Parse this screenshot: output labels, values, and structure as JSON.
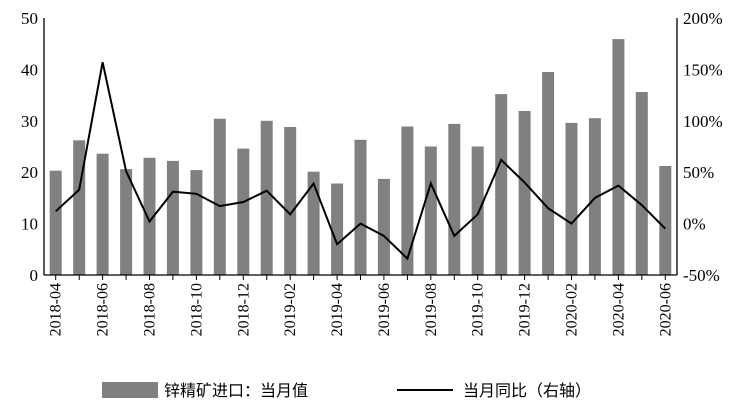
{
  "chart_data": {
    "type": "bar",
    "categories": [
      "2018-04",
      "2018-05",
      "2018-06",
      "2018-07",
      "2018-08",
      "2018-09",
      "2018-10",
      "2018-11",
      "2018-12",
      "2019-01",
      "2019-02",
      "2019-03",
      "2019-04",
      "2019-05",
      "2019-06",
      "2019-07",
      "2019-08",
      "2019-09",
      "2019-10",
      "2019-11",
      "2019-12",
      "2020-01",
      "2020-02",
      "2020-03",
      "2020-04",
      "2020-05",
      "2020-06"
    ],
    "x_tick_labels": [
      "2018-04",
      "2018-06",
      "2018-08",
      "2018-10",
      "2018-12",
      "2019-02",
      "2019-04",
      "2019-06",
      "2019-08",
      "2019-10",
      "2019-12",
      "2020-02",
      "2020-04",
      "2020-06"
    ],
    "series": [
      {
        "name": "锌精矿进口：当月值",
        "kind": "bar",
        "axis": "left",
        "color": "#808080",
        "values": [
          20.3,
          26.2,
          23.6,
          20.6,
          22.8,
          22.2,
          20.4,
          30.4,
          24.6,
          30.0,
          28.8,
          20.1,
          17.8,
          26.3,
          18.7,
          28.9,
          25.0,
          29.4,
          25.0,
          35.2,
          31.9,
          39.5,
          29.6,
          30.5,
          45.9,
          35.6,
          21.2
        ]
      },
      {
        "name": "当月同比（右轴）",
        "kind": "line",
        "axis": "right",
        "color": "#000000",
        "values": [
          12,
          33,
          157,
          51,
          2,
          31,
          29,
          17,
          21,
          32,
          9,
          39,
          -20,
          0,
          -12,
          -34,
          39,
          -12,
          9,
          62,
          40,
          15,
          0,
          25,
          37,
          18,
          -5
        ]
      }
    ],
    "y_left": {
      "ticks": [
        "0",
        "10",
        "20",
        "30",
        "40",
        "50"
      ],
      "ylim": [
        0,
        50
      ]
    },
    "y_right": {
      "ticks": [
        "-50%",
        "0%",
        "50%",
        "100%",
        "150%",
        "200%"
      ],
      "ylim": [
        -50,
        200
      ]
    },
    "legend_position": "bottom",
    "grid": false
  }
}
